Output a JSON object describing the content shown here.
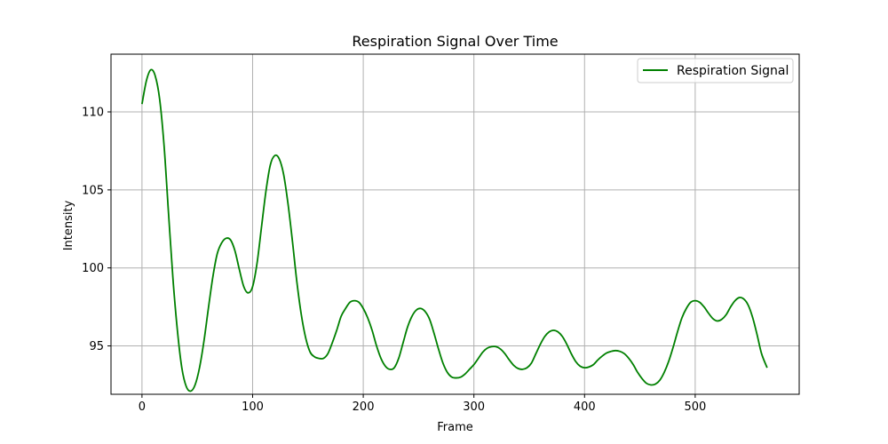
{
  "chart_data": {
    "type": "line",
    "title": "Respiration Signal Over Time",
    "xlabel": "Frame",
    "ylabel": "Intensity",
    "xlim": [
      -28,
      594
    ],
    "ylim": [
      91.9,
      113.7
    ],
    "xticks": [
      0,
      100,
      200,
      300,
      400,
      500
    ],
    "yticks": [
      95,
      100,
      105,
      110
    ],
    "grid": true,
    "legend_position": "top-right",
    "series": [
      {
        "name": "Respiration Signal",
        "color": "#008000",
        "points": [
          [
            0,
            110.5
          ],
          [
            4,
            112.0
          ],
          [
            8,
            112.7
          ],
          [
            12,
            112.3
          ],
          [
            16,
            110.8
          ],
          [
            20,
            107.8
          ],
          [
            24,
            103.5
          ],
          [
            28,
            99.3
          ],
          [
            32,
            96.0
          ],
          [
            36,
            93.6
          ],
          [
            40,
            92.4
          ],
          [
            44,
            92.1
          ],
          [
            48,
            92.5
          ],
          [
            52,
            93.6
          ],
          [
            56,
            95.3
          ],
          [
            60,
            97.4
          ],
          [
            64,
            99.4
          ],
          [
            68,
            100.9
          ],
          [
            72,
            101.6
          ],
          [
            76,
            101.9
          ],
          [
            80,
            101.8
          ],
          [
            84,
            101.1
          ],
          [
            88,
            99.9
          ],
          [
            92,
            98.8
          ],
          [
            96,
            98.4
          ],
          [
            100,
            98.8
          ],
          [
            104,
            100.3
          ],
          [
            108,
            102.6
          ],
          [
            112,
            104.9
          ],
          [
            116,
            106.6
          ],
          [
            120,
            107.2
          ],
          [
            124,
            107.0
          ],
          [
            128,
            106.0
          ],
          [
            132,
            104.1
          ],
          [
            136,
            101.7
          ],
          [
            140,
            99.1
          ],
          [
            144,
            97.0
          ],
          [
            148,
            95.5
          ],
          [
            152,
            94.6
          ],
          [
            156,
            94.3
          ],
          [
            160,
            94.2
          ],
          [
            164,
            94.2
          ],
          [
            168,
            94.5
          ],
          [
            172,
            95.2
          ],
          [
            176,
            96.0
          ],
          [
            180,
            96.9
          ],
          [
            184,
            97.4
          ],
          [
            188,
            97.8
          ],
          [
            192,
            97.9
          ],
          [
            196,
            97.8
          ],
          [
            200,
            97.4
          ],
          [
            204,
            96.8
          ],
          [
            208,
            96.0
          ],
          [
            212,
            95.0
          ],
          [
            216,
            94.2
          ],
          [
            220,
            93.7
          ],
          [
            224,
            93.5
          ],
          [
            228,
            93.6
          ],
          [
            232,
            94.2
          ],
          [
            236,
            95.2
          ],
          [
            240,
            96.2
          ],
          [
            244,
            96.9
          ],
          [
            248,
            97.3
          ],
          [
            252,
            97.4
          ],
          [
            256,
            97.2
          ],
          [
            260,
            96.7
          ],
          [
            264,
            95.8
          ],
          [
            268,
            94.8
          ],
          [
            272,
            93.9
          ],
          [
            276,
            93.3
          ],
          [
            280,
            93.0
          ],
          [
            284,
            92.95
          ],
          [
            288,
            93.0
          ],
          [
            292,
            93.2
          ],
          [
            296,
            93.5
          ],
          [
            300,
            93.8
          ],
          [
            304,
            94.2
          ],
          [
            308,
            94.6
          ],
          [
            312,
            94.85
          ],
          [
            316,
            94.95
          ],
          [
            320,
            94.95
          ],
          [
            324,
            94.8
          ],
          [
            328,
            94.5
          ],
          [
            332,
            94.1
          ],
          [
            336,
            93.75
          ],
          [
            340,
            93.55
          ],
          [
            344,
            93.5
          ],
          [
            348,
            93.6
          ],
          [
            352,
            93.9
          ],
          [
            356,
            94.5
          ],
          [
            360,
            95.1
          ],
          [
            364,
            95.6
          ],
          [
            368,
            95.9
          ],
          [
            372,
            96.0
          ],
          [
            376,
            95.9
          ],
          [
            380,
            95.6
          ],
          [
            384,
            95.1
          ],
          [
            388,
            94.5
          ],
          [
            392,
            94.0
          ],
          [
            396,
            93.7
          ],
          [
            400,
            93.6
          ],
          [
            404,
            93.65
          ],
          [
            408,
            93.8
          ],
          [
            412,
            94.1
          ],
          [
            416,
            94.35
          ],
          [
            420,
            94.55
          ],
          [
            424,
            94.65
          ],
          [
            428,
            94.7
          ],
          [
            432,
            94.65
          ],
          [
            436,
            94.5
          ],
          [
            440,
            94.2
          ],
          [
            444,
            93.8
          ],
          [
            448,
            93.3
          ],
          [
            452,
            92.9
          ],
          [
            456,
            92.6
          ],
          [
            460,
            92.5
          ],
          [
            464,
            92.55
          ],
          [
            468,
            92.8
          ],
          [
            472,
            93.3
          ],
          [
            476,
            94.0
          ],
          [
            480,
            94.9
          ],
          [
            484,
            95.9
          ],
          [
            488,
            96.8
          ],
          [
            492,
            97.4
          ],
          [
            496,
            97.8
          ],
          [
            500,
            97.9
          ],
          [
            504,
            97.8
          ],
          [
            508,
            97.5
          ],
          [
            512,
            97.1
          ],
          [
            516,
            96.75
          ],
          [
            520,
            96.6
          ],
          [
            524,
            96.7
          ],
          [
            528,
            97.0
          ],
          [
            532,
            97.5
          ],
          [
            536,
            97.9
          ],
          [
            540,
            98.1
          ],
          [
            544,
            98.0
          ],
          [
            548,
            97.6
          ],
          [
            552,
            96.8
          ],
          [
            556,
            95.7
          ],
          [
            560,
            94.5
          ],
          [
            565,
            93.6
          ]
        ]
      }
    ]
  }
}
